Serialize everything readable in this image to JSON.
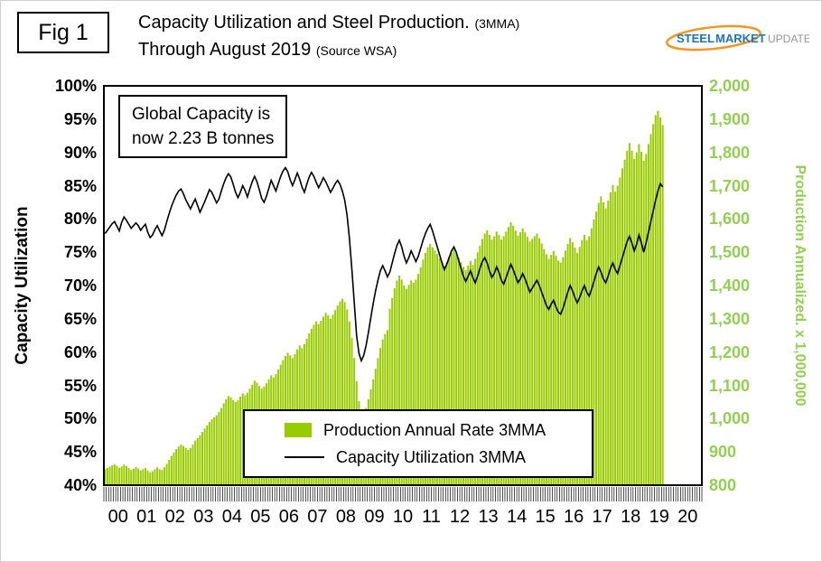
{
  "figure_label": "Fig 1",
  "title": {
    "line1_main": "Capacity Utilization and Steel Production.",
    "line1_small": "(3MMA)",
    "line2_main": "Through August 2019",
    "line2_small": "(Source WSA)"
  },
  "logo": {
    "steel": "STEEL",
    "market": "MARKET",
    "update": "UPDATE"
  },
  "annotation": {
    "line1": "Global Capacity is",
    "line2": "now 2.23 B tonnes"
  },
  "legend": [
    {
      "type": "bar",
      "label": "Production Annual Rate 3MMA"
    },
    {
      "type": "line",
      "label": "Capacity Utilization 3MMA"
    }
  ],
  "colors": {
    "production": "#99CC00",
    "axis_green": "#92D050",
    "line": "#000000"
  },
  "chart_data": {
    "type": "combo",
    "title": "Capacity Utilization and Steel Production. (3MMA) Through August 2019 (Source WSA)",
    "grid": false,
    "legend_position": "bottom-center-inside",
    "left_axis": {
      "title": "Capacity Utilization",
      "min": 40,
      "max": 100,
      "step": 5,
      "unit": "%"
    },
    "right_axis": {
      "title": "Production Annualized. x 1,000,000",
      "min": 800,
      "max": 2000,
      "step": 100
    },
    "x_axis": {
      "start": "2000-01",
      "end_of_data": "2019-08",
      "span_years": 21,
      "year_labels": [
        "00",
        "01",
        "02",
        "03",
        "04",
        "05",
        "06",
        "07",
        "08",
        "09",
        "10",
        "11",
        "12",
        "13",
        "14",
        "15",
        "16",
        "17",
        "18",
        "19",
        "20"
      ]
    },
    "series": [
      {
        "name": "Production Annual Rate 3MMA",
        "type": "bar",
        "axis": "right",
        "frequency": "monthly",
        "monthly_values": [
          848,
          852,
          856,
          860,
          863,
          858,
          852,
          856,
          862,
          858,
          852,
          846,
          850,
          854,
          850,
          844,
          848,
          852,
          844,
          838,
          842,
          848,
          854,
          848,
          846,
          854,
          864,
          876,
          888,
          898,
          908,
          916,
          922,
          918,
          912,
          906,
          912,
          922,
          934,
          942,
          950,
          960,
          970,
          980,
          990,
          998,
          1004,
          1010,
          1020,
          1032,
          1046,
          1058,
          1068,
          1064,
          1056,
          1050,
          1056,
          1066,
          1076,
          1070,
          1078,
          1090,
          1102,
          1114,
          1108,
          1098,
          1090,
          1096,
          1106,
          1118,
          1130,
          1124,
          1134,
          1148,
          1162,
          1176,
          1188,
          1198,
          1190,
          1182,
          1194,
          1208,
          1220,
          1212,
          1224,
          1240,
          1256,
          1270,
          1282,
          1292,
          1284,
          1294,
          1306,
          1318,
          1310,
          1300,
          1312,
          1326,
          1340,
          1352,
          1360,
          1350,
          1328,
          1292,
          1242,
          1182,
          1112,
          1052,
          1024,
          1015,
          1032,
          1058,
          1088,
          1118,
          1150,
          1182,
          1212,
          1238,
          1254,
          1266,
          1330,
          1362,
          1392,
          1415,
          1430,
          1418,
          1400,
          1390,
          1402,
          1415,
          1408,
          1418,
          1435,
          1455,
          1478,
          1498,
          1515,
          1525,
          1515,
          1505,
          1495,
          1482,
          1470,
          1458,
          1470,
          1485,
          1498,
          1508,
          1498,
          1484,
          1470,
          1456,
          1446,
          1460,
          1474,
          1462,
          1480,
          1500,
          1520,
          1540,
          1556,
          1566,
          1552,
          1538,
          1548,
          1562,
          1552,
          1538,
          1548,
          1562,
          1576,
          1590,
          1580,
          1565,
          1550,
          1560,
          1572,
          1560,
          1546,
          1532,
          1540,
          1548,
          1556,
          1542,
          1526,
          1510,
          1494,
          1480,
          1492,
          1504,
          1490,
          1475,
          1468,
          1485,
          1505,
          1525,
          1543,
          1530,
          1514,
          1498,
          1516,
          1536,
          1552,
          1536,
          1548,
          1572,
          1598,
          1622,
          1648,
          1668,
          1650,
          1632,
          1655,
          1680,
          1702,
          1682,
          1700,
          1725,
          1752,
          1778,
          1805,
          1828,
          1805,
          1780,
          1800,
          1825,
          1802,
          1775,
          1795,
          1825,
          1855,
          1885,
          1912,
          1925,
          1905,
          1882
        ]
      },
      {
        "name": "Capacity Utilization 3MMA",
        "type": "line",
        "axis": "left",
        "frequency": "monthly",
        "monthly_values": [
          77.8,
          78.3,
          78.8,
          79.3,
          79.6,
          78.9,
          78.2,
          79.5,
          80.3,
          79.8,
          79.2,
          78.6,
          79.0,
          79.4,
          79.0,
          78.3,
          78.8,
          79.2,
          78.0,
          77.2,
          77.6,
          78.4,
          79.0,
          78.2,
          77.5,
          78.3,
          79.6,
          80.8,
          81.9,
          82.8,
          83.6,
          84.2,
          84.5,
          83.8,
          82.9,
          82.2,
          81.5,
          82.3,
          83.0,
          82.0,
          81.0,
          81.8,
          82.6,
          83.5,
          84.4,
          84.0,
          83.2,
          82.4,
          83.0,
          84.2,
          85.3,
          86.2,
          86.8,
          86.3,
          85.2,
          84.0,
          83.2,
          84.0,
          85.0,
          84.3,
          83.3,
          84.5,
          85.6,
          86.4,
          85.6,
          84.4,
          83.1,
          82.5,
          83.4,
          84.6,
          85.8,
          85.0,
          84.2,
          85.3,
          86.4,
          87.2,
          87.7,
          87.1,
          85.9,
          85.0,
          85.9,
          86.9,
          86.0,
          84.8,
          84.0,
          85.2,
          86.3,
          87.0,
          86.4,
          85.5,
          84.7,
          85.4,
          86.2,
          85.6,
          84.8,
          84.0,
          84.6,
          85.3,
          85.8,
          85.2,
          84.2,
          82.8,
          80.5,
          77.0,
          72.5,
          67.5,
          62.5,
          59.8,
          58.7,
          59.5,
          61.0,
          63.0,
          65.2,
          67.3,
          69.2,
          70.8,
          72.2,
          73.0,
          72.2,
          71.3,
          72.0,
          73.4,
          74.8,
          76.0,
          76.8,
          75.8,
          74.4,
          73.4,
          74.2,
          75.2,
          74.4,
          73.6,
          74.4,
          75.6,
          76.8,
          77.8,
          78.6,
          79.2,
          78.2,
          77.0,
          75.8,
          74.6,
          73.4,
          72.4,
          73.2,
          74.2,
          75.2,
          75.8,
          75.0,
          73.8,
          72.6,
          71.4,
          70.6,
          71.4,
          72.2,
          71.2,
          70.4,
          71.4,
          72.6,
          73.6,
          74.2,
          73.4,
          72.2,
          71.2,
          71.8,
          72.8,
          72.0,
          70.8,
          70.2,
          71.2,
          72.2,
          73.2,
          72.4,
          71.4,
          70.4,
          71.0,
          71.8,
          71.0,
          70.0,
          69.0,
          69.6,
          70.2,
          70.8,
          70.0,
          69.0,
          68.0,
          67.0,
          66.4,
          67.2,
          67.8,
          66.8,
          66.0,
          65.7,
          66.6,
          67.8,
          69.0,
          70.0,
          69.2,
          68.2,
          67.4,
          68.2,
          69.2,
          70.0,
          69.0,
          68.4,
          69.4,
          70.6,
          71.8,
          72.8,
          72.0,
          71.0,
          70.4,
          71.4,
          72.6,
          73.4,
          72.4,
          71.8,
          73.0,
          74.2,
          75.4,
          76.6,
          77.4,
          76.4,
          75.2,
          76.2,
          77.6,
          76.4,
          75.0,
          76.4,
          78.0,
          79.6,
          81.2,
          82.8,
          84.2,
          85.3,
          84.8
        ]
      }
    ]
  }
}
